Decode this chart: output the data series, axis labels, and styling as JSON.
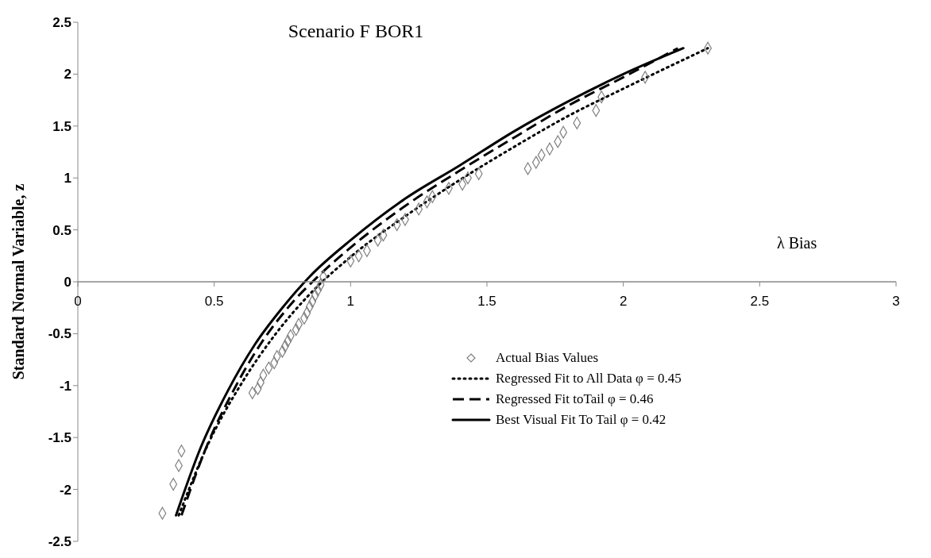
{
  "chart_data": {
    "type": "line",
    "title": "Scenario F BOR1",
    "xlabel": "λ Bias",
    "ylabel": "Standard Normal Variable, z",
    "xlim": [
      0,
      3
    ],
    "ylim": [
      -2.5,
      2.5
    ],
    "xticks": [
      0,
      0.5,
      1,
      1.5,
      2,
      2.5,
      3
    ],
    "yticks": [
      -2.5,
      -2,
      -1.5,
      -1,
      -0.5,
      0,
      0.5,
      1,
      1.5,
      2,
      2.5
    ],
    "grid": false,
    "legend": "bottom right",
    "series": [
      {
        "name": "Actual Bias Values",
        "type": "scatter",
        "marker": "diamond",
        "color": "#808080",
        "x": [
          0.31,
          0.35,
          0.37,
          0.38,
          0.64,
          0.66,
          0.67,
          0.68,
          0.7,
          0.72,
          0.73,
          0.75,
          0.76,
          0.77,
          0.78,
          0.8,
          0.81,
          0.83,
          0.84,
          0.85,
          0.86,
          0.87,
          0.88,
          0.89,
          0.9,
          1.0,
          1.03,
          1.06,
          1.1,
          1.12,
          1.17,
          1.2,
          1.25,
          1.28,
          1.3,
          1.36,
          1.41,
          1.43,
          1.47,
          1.65,
          1.68,
          1.7,
          1.73,
          1.76,
          1.78,
          1.83,
          1.9,
          1.92,
          2.08,
          2.31
        ],
        "values": [
          -2.23,
          -1.95,
          -1.77,
          -1.63,
          -1.07,
          -1.03,
          -0.97,
          -0.9,
          -0.83,
          -0.78,
          -0.72,
          -0.67,
          -0.62,
          -0.57,
          -0.52,
          -0.46,
          -0.41,
          -0.35,
          -0.3,
          -0.24,
          -0.19,
          -0.13,
          -0.08,
          -0.03,
          0.05,
          0.2,
          0.25,
          0.3,
          0.4,
          0.45,
          0.55,
          0.6,
          0.7,
          0.77,
          0.82,
          0.9,
          0.94,
          1.0,
          1.04,
          1.09,
          1.15,
          1.22,
          1.28,
          1.35,
          1.44,
          1.53,
          1.65,
          1.78,
          1.97,
          2.25
        ]
      },
      {
        "name": "Regressed Fit to All Data φ = 0.45",
        "line_style": "dotted",
        "marker": "none",
        "color": "#000000",
        "x": [
          0.37,
          0.48,
          0.6,
          0.72,
          0.85,
          1.0,
          1.2,
          1.4,
          1.6,
          1.8,
          2.0,
          2.31
        ],
        "values": [
          -2.25,
          -1.55,
          -0.98,
          -0.52,
          -0.12,
          0.24,
          0.63,
          0.98,
          1.3,
          1.6,
          1.86,
          2.25
        ]
      },
      {
        "name": "Regressed Fit toTail φ = 0.46",
        "line_style": "dashed",
        "marker": "none",
        "color": "#000000",
        "x": [
          0.38,
          0.47,
          0.57,
          0.67,
          0.78,
          0.88,
          1.0,
          1.2,
          1.4,
          1.6,
          1.8,
          2.0,
          2.2
        ],
        "values": [
          -2.25,
          -1.6,
          -1.05,
          -0.6,
          -0.22,
          0.05,
          0.33,
          0.73,
          1.07,
          1.39,
          1.7,
          1.97,
          2.25
        ]
      },
      {
        "name": "Best Visual Fit To Tail φ = 0.42",
        "line_style": "solid",
        "marker": "none",
        "color": "#000000",
        "x": [
          0.36,
          0.45,
          0.55,
          0.65,
          0.75,
          0.85,
          1.0,
          1.2,
          1.4,
          1.6,
          1.8,
          2.0,
          2.22
        ],
        "values": [
          -2.25,
          -1.6,
          -1.05,
          -0.6,
          -0.25,
          0.05,
          0.4,
          0.8,
          1.12,
          1.45,
          1.74,
          2.0,
          2.25
        ]
      }
    ]
  }
}
